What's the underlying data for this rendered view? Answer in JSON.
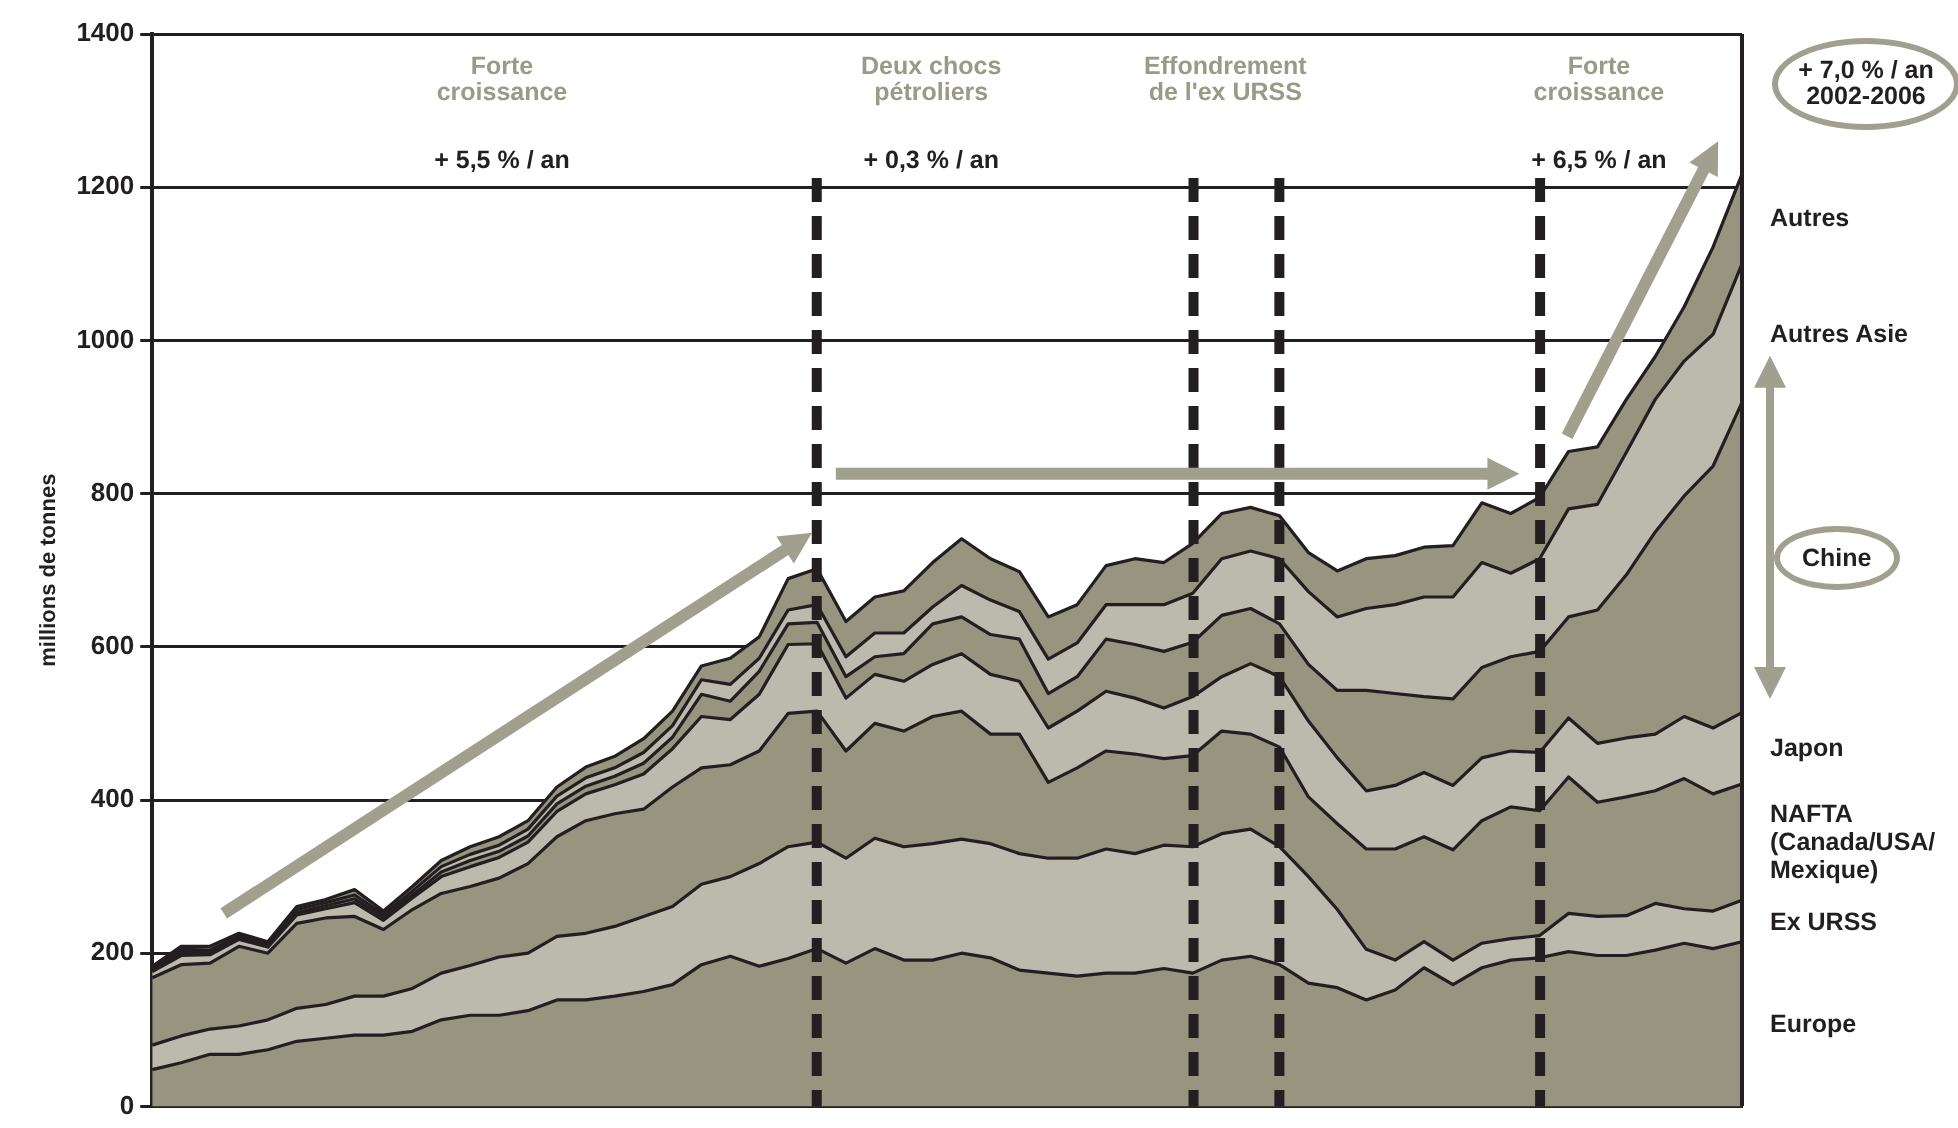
{
  "chart_data": {
    "type": "area",
    "stacked": true,
    "ylabel": "millions de tonnes",
    "ylim": [
      0,
      1400
    ],
    "yticks": [
      0,
      200,
      400,
      600,
      800,
      1000,
      1200,
      1400
    ],
    "grid": "y",
    "tick_labels": "y",
    "legend": false,
    "marker": "none",
    "categories": [
      null,
      null,
      null,
      null,
      null,
      null,
      null,
      null,
      null,
      null,
      null,
      null,
      null,
      null,
      null,
      null,
      null,
      null,
      null,
      null,
      null,
      null,
      null,
      null,
      null,
      null,
      null,
      null,
      null,
      null,
      null,
      null,
      null,
      null,
      null,
      null,
      null,
      null,
      null,
      null,
      null,
      null,
      null,
      null,
      null,
      null,
      null,
      null,
      null,
      null,
      null,
      null,
      null,
      null,
      null,
      null
    ],
    "series": [
      {
        "name": "Europe",
        "color": "#97947f",
        "values": [
          48,
          57,
          68,
          68,
          74,
          85,
          89,
          93,
          93,
          98,
          113,
          119,
          119,
          125,
          139,
          139,
          144,
          150,
          159,
          185,
          196,
          183,
          193,
          206,
          187,
          206,
          191,
          191,
          200,
          194,
          178,
          174,
          170,
          174,
          174,
          180,
          174,
          191,
          196,
          185,
          161,
          155,
          139,
          152,
          181,
          159,
          181,
          191,
          194,
          202,
          197,
          197,
          204,
          213,
          206,
          215
        ]
      },
      {
        "name": "Ex URSS",
        "color": "#bcbaad",
        "values": [
          32,
          35,
          33,
          37,
          39,
          43,
          44,
          51,
          51,
          56,
          61,
          65,
          76,
          75,
          83,
          87,
          91,
          98,
          102,
          105,
          104,
          134,
          146,
          139,
          137,
          144,
          148,
          152,
          149,
          149,
          152,
          150,
          154,
          162,
          156,
          161,
          165,
          165,
          166,
          154,
          139,
          102,
          66,
          39,
          34,
          32,
          32,
          28,
          29,
          50,
          51,
          52,
          61,
          45,
          49,
          54
        ]
      },
      {
        "name": "NAFTA (Canada/USA/ Mexique)",
        "color": "#97947f",
        "values": [
          88,
          93,
          86,
          104,
          87,
          111,
          113,
          104,
          87,
          103,
          104,
          103,
          103,
          117,
          130,
          147,
          147,
          140,
          156,
          152,
          146,
          147,
          174,
          171,
          140,
          150,
          151,
          166,
          167,
          143,
          156,
          99,
          118,
          128,
          130,
          113,
          119,
          134,
          124,
          130,
          104,
          112,
          131,
          145,
          137,
          144,
          160,
          172,
          163,
          178,
          149,
          155,
          147,
          170,
          153,
          152
        ]
      },
      {
        "name": "Japon",
        "color": "#bcbaad",
        "values": [
          8,
          12,
          11,
          9,
          8,
          11,
          12,
          18,
          12,
          15,
          22,
          26,
          27,
          28,
          33,
          35,
          38,
          46,
          50,
          67,
          59,
          74,
          90,
          88,
          69,
          64,
          65,
          68,
          75,
          78,
          69,
          71,
          74,
          78,
          73,
          66,
          77,
          71,
          92,
          92,
          99,
          86,
          76,
          83,
          84,
          84,
          82,
          73,
          76,
          77,
          77,
          77,
          74,
          81,
          86,
          93
        ]
      },
      {
        "name": "Chine",
        "color": "#97947f",
        "values": [
          2,
          4,
          3,
          2,
          2,
          3,
          4,
          5,
          4,
          4,
          6,
          8,
          8,
          8,
          10,
          10,
          11,
          14,
          15,
          29,
          24,
          30,
          27,
          28,
          28,
          23,
          36,
          53,
          48,
          52,
          55,
          45,
          45,
          68,
          70,
          74,
          71,
          80,
          72,
          69,
          74,
          88,
          131,
          120,
          99,
          113,
          118,
          123,
          132,
          132,
          174,
          213,
          264,
          288,
          342,
          405
        ]
      },
      {
        "name": "Autres Asie",
        "color": "#bcbaad",
        "values": [
          2,
          4,
          3,
          3,
          2,
          4,
          4,
          5,
          4,
          5,
          7,
          8,
          8,
          9,
          10,
          11,
          11,
          14,
          15,
          19,
          22,
          17,
          18,
          23,
          26,
          31,
          27,
          22,
          41,
          45,
          36,
          45,
          44,
          45,
          52,
          61,
          64,
          74,
          75,
          85,
          95,
          96,
          107,
          116,
          130,
          133,
          137,
          109,
          121,
          141,
          138,
          160,
          173,
          176,
          172,
          181
        ]
      },
      {
        "name": "Autres",
        "color": "#97947f",
        "values": [
          3,
          4,
          5,
          3,
          3,
          4,
          4,
          7,
          4,
          6,
          8,
          10,
          11,
          11,
          12,
          14,
          15,
          18,
          19,
          18,
          34,
          28,
          41,
          47,
          46,
          47,
          55,
          58,
          61,
          54,
          52,
          55,
          50,
          51,
          60,
          55,
          65,
          59,
          57,
          56,
          51,
          60,
          65,
          64,
          65,
          67,
          78,
          78,
          80,
          75,
          75,
          69,
          56,
          71,
          114,
          117
        ]
      }
    ],
    "annotations": [
      "Forte croissance",
      "+ 5,5 % / an",
      "Deux chocs pétroliers",
      "+ 0,3 % / an",
      "Effondrement de l'ex URSS",
      "Forte croissance",
      "+ 6,5 % / an",
      "+ 7,0 % / an 2002-2006"
    ]
  }
}
